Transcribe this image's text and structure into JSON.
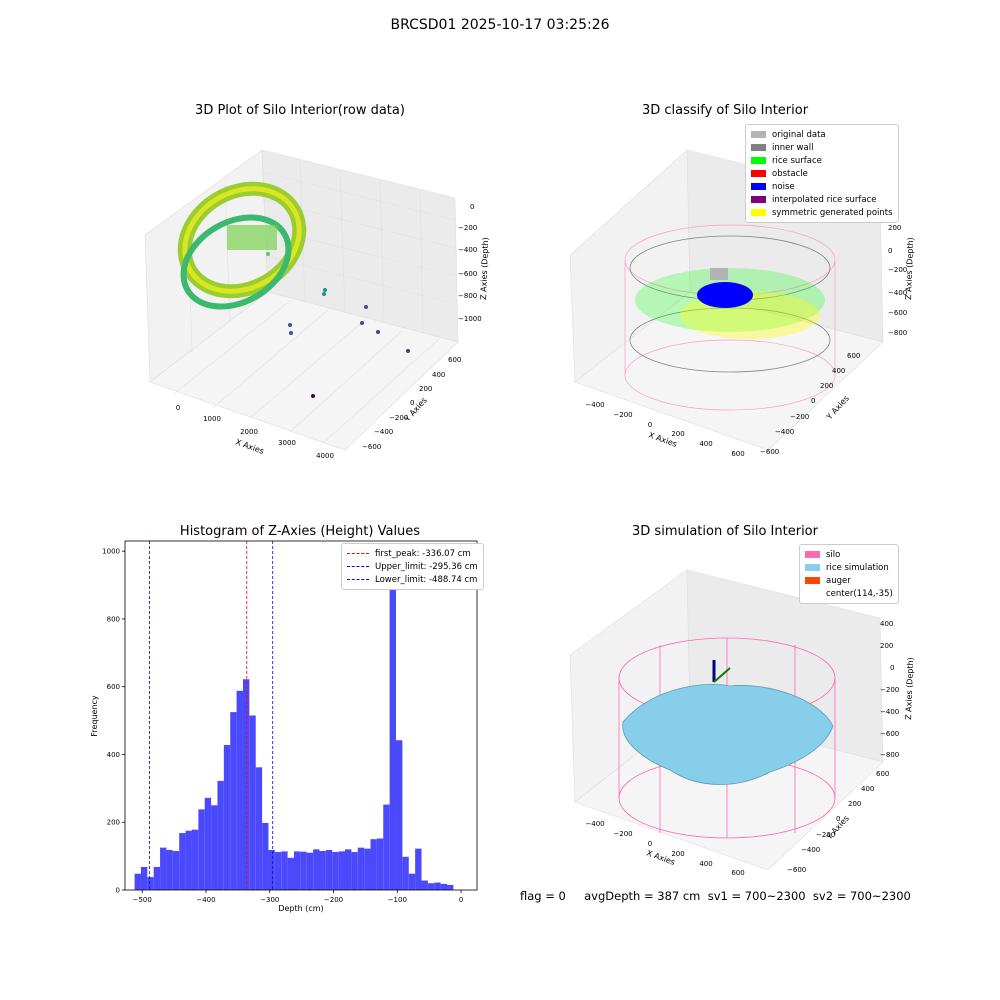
{
  "figure": {
    "suptitle": "BRCSD01 2025-10-17 03:25:26",
    "footer": "flag = 0     avgDepth = 387 cm  sv1 = 700~2300  sv2 = 700~2300"
  },
  "colors": {
    "histogram": "#4a4afc",
    "silo": "#ff69b4",
    "rice_simulation": "#87ceeb",
    "auger": "#ff4500"
  },
  "chart_data": [
    {
      "type": "scatter",
      "projection": "3d",
      "title": "3D Plot of Silo Interior(row data)",
      "xlabel": "X Axies",
      "ylabel": "Y Axies",
      "zlabel": "Z Axies (Depth)",
      "x_ticks": [
        "0",
        "1000",
        "2000",
        "3000",
        "4000"
      ],
      "y_ticks": [
        "600",
        "400",
        "200",
        "0",
        "−200",
        "−400",
        "−600"
      ],
      "z_ticks": [
        "0",
        "−200",
        "−400",
        "−600",
        "−800",
        "−1000"
      ],
      "colormap": "viridis",
      "grid": true
    },
    {
      "type": "scatter",
      "projection": "3d",
      "title": "3D classify of Silo Interior",
      "xlabel": "X Axies",
      "ylabel": "Y Axies",
      "zlabel": "Z Axies (Depth)",
      "x_ticks": [
        "−400",
        "−200",
        "0",
        "200",
        "400",
        "600"
      ],
      "y_ticks": [
        "600",
        "400",
        "200",
        "0",
        "−200",
        "−400",
        "−600"
      ],
      "z_ticks": [
        "200",
        "0",
        "−200",
        "−400",
        "−600",
        "−800"
      ],
      "legend": [
        {
          "label": "original data",
          "color": "#b3b3b3"
        },
        {
          "label": "inner wall",
          "color": "#808080"
        },
        {
          "label": "rice surface",
          "color": "#00ff00"
        },
        {
          "label": "obstacle",
          "color": "#ff0000"
        },
        {
          "label": "noise",
          "color": "#0000ff"
        },
        {
          "label": "interpolated rice surface",
          "color": "#800080"
        },
        {
          "label": "symmetric generated points",
          "color": "#ffff00"
        }
      ],
      "legend_position": "top-right",
      "grid": true
    },
    {
      "type": "bar",
      "title": "Histogram of Z-Axies (Height) Values",
      "xlabel": "Depth (cm)",
      "ylabel": "Frequency",
      "xlim": [
        -527,
        25
      ],
      "ylim": [
        0,
        1030
      ],
      "x_ticks": [
        -500,
        -400,
        -300,
        -200,
        -100,
        0
      ],
      "x_tick_labels": [
        "−500",
        "−400",
        "−300",
        "−200",
        "−100",
        "0"
      ],
      "y_ticks": [
        0,
        200,
        400,
        600,
        800,
        1000
      ],
      "y_tick_labels": [
        "0",
        "200",
        "400",
        "600",
        "800",
        "1000"
      ],
      "bin_start": -512,
      "bin_width": 10,
      "values": [
        48,
        68,
        38,
        68,
        125,
        118,
        115,
        168,
        175,
        178,
        238,
        272,
        250,
        322,
        428,
        525,
        588,
        622,
        515,
        362,
        198,
        118,
        112,
        114,
        95,
        114,
        113,
        110,
        120,
        115,
        118,
        112,
        114,
        120,
        112,
        125,
        122,
        150,
        152,
        252,
        975,
        442,
        98,
        48,
        122,
        28,
        20,
        22,
        18,
        15
      ],
      "lines": [
        {
          "label": "first_peak: -336.07 cm",
          "x": -336.07,
          "color": "#ff0000"
        },
        {
          "label": "Upper_limit: -295.36 cm",
          "x": -295.36,
          "color": "#0000ff"
        },
        {
          "label": "Lower_limit: -488.74 cm",
          "x": -488.74,
          "color": "#0000ff"
        }
      ],
      "legend_position": "top-right"
    },
    {
      "type": "surface",
      "projection": "3d",
      "title": "3D simulation of Silo Interior",
      "xlabel": "X Axies",
      "ylabel": "Y Axies",
      "zlabel": "Z Axies (Depth)",
      "x_ticks": [
        "−400",
        "−200",
        "0",
        "200",
        "400",
        "600"
      ],
      "y_ticks": [
        "600",
        "400",
        "200",
        "0",
        "−200",
        "−400",
        "−600"
      ],
      "z_ticks": [
        "400",
        "200",
        "0",
        "−200",
        "−400",
        "−600",
        "−800"
      ],
      "legend": [
        {
          "label": "silo",
          "color": "#ff69b4"
        },
        {
          "label": "rice simulation",
          "color": "#87ceeb"
        },
        {
          "label": "auger",
          "color": "#ff4500"
        },
        {
          "label": "center(114,-35)",
          "color": ""
        }
      ],
      "legend_position": "top-right",
      "grid": true
    }
  ]
}
